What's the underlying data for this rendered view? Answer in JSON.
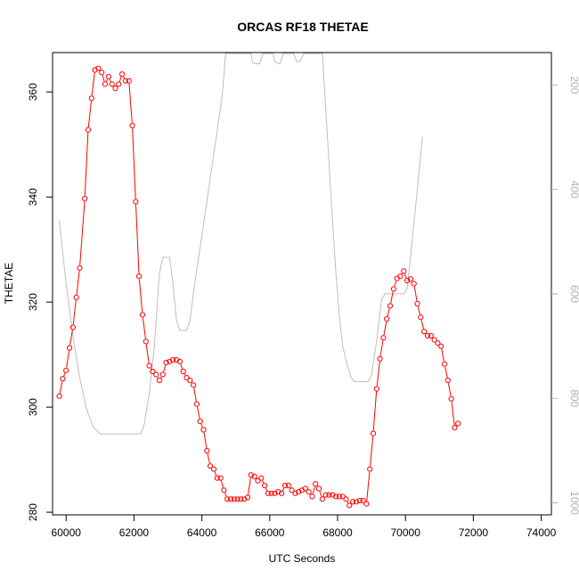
{
  "chart_data": {
    "type": "line",
    "title": "ORCAS RF18 THETAE",
    "xlabel": "UTC Seconds",
    "ylabel": "THETAE",
    "xlim": [
      59600,
      74300
    ],
    "ylim": [
      279.5,
      367.5
    ],
    "x_ticks": [
      60000,
      62000,
      64000,
      66000,
      68000,
      70000,
      72000,
      74000
    ],
    "y_ticks": [
      280,
      300,
      320,
      340,
      360
    ],
    "y2_ticks": [
      200,
      400,
      600,
      800,
      1000
    ],
    "y2lim_reversed": [
      1023,
      138
    ],
    "series": [
      {
        "color": "#ff0000",
        "style": "points-lines",
        "points": [
          [
            59800,
            302.1
          ],
          [
            59900,
            305.4
          ],
          [
            60000,
            307.0
          ],
          [
            60100,
            311.3
          ],
          [
            60200,
            315.2
          ],
          [
            60300,
            320.9
          ],
          [
            60400,
            326.5
          ],
          [
            60550,
            339.7
          ],
          [
            60650,
            352.8
          ],
          [
            60750,
            358.8
          ],
          [
            60850,
            364.2
          ],
          [
            60950,
            364.5
          ],
          [
            61050,
            363.7
          ],
          [
            61150,
            361.5
          ],
          [
            61250,
            362.9
          ],
          [
            61350,
            361.5
          ],
          [
            61450,
            360.7
          ],
          [
            61550,
            361.5
          ],
          [
            61650,
            363.4
          ],
          [
            61750,
            362.1
          ],
          [
            61850,
            362.1
          ],
          [
            61950,
            353.6
          ],
          [
            62050,
            339.1
          ],
          [
            62150,
            324.9
          ],
          [
            62250,
            317.6
          ],
          [
            62350,
            312.5
          ],
          [
            62450,
            307.9
          ],
          [
            62550,
            306.8
          ],
          [
            62650,
            306.2
          ],
          [
            62750,
            305.1
          ],
          [
            62850,
            306.2
          ],
          [
            62950,
            308.5
          ],
          [
            63050,
            308.7
          ],
          [
            63150,
            309.0
          ],
          [
            63250,
            309.0
          ],
          [
            63350,
            308.7
          ],
          [
            63450,
            306.8
          ],
          [
            63550,
            305.6
          ],
          [
            63650,
            305.1
          ],
          [
            63750,
            304.2
          ],
          [
            63850,
            300.6
          ],
          [
            63950,
            297.3
          ],
          [
            64050,
            295.7
          ],
          [
            64150,
            291.7
          ],
          [
            64250,
            288.8
          ],
          [
            64350,
            288.2
          ],
          [
            64450,
            286.5
          ],
          [
            64550,
            286.5
          ],
          [
            64650,
            284.2
          ],
          [
            64750,
            282.5
          ],
          [
            64850,
            282.5
          ],
          [
            64950,
            282.5
          ],
          [
            65050,
            282.5
          ],
          [
            65150,
            282.5
          ],
          [
            65250,
            282.5
          ],
          [
            65350,
            282.8
          ],
          [
            65450,
            287.1
          ],
          [
            65550,
            286.8
          ],
          [
            65650,
            286.0
          ],
          [
            65750,
            286.5
          ],
          [
            65850,
            285.1
          ],
          [
            65950,
            283.6
          ],
          [
            66050,
            283.6
          ],
          [
            66150,
            283.6
          ],
          [
            66250,
            283.9
          ],
          [
            66350,
            283.6
          ],
          [
            66450,
            285.1
          ],
          [
            66550,
            285.1
          ],
          [
            66650,
            284.2
          ],
          [
            66750,
            283.6
          ],
          [
            66850,
            283.9
          ],
          [
            66950,
            284.2
          ],
          [
            67050,
            284.5
          ],
          [
            67150,
            283.9
          ],
          [
            67250,
            283.0
          ],
          [
            67350,
            285.4
          ],
          [
            67450,
            284.5
          ],
          [
            67550,
            282.5
          ],
          [
            67650,
            283.3
          ],
          [
            67750,
            283.3
          ],
          [
            67850,
            283.3
          ],
          [
            67950,
            283.0
          ],
          [
            68050,
            283.0
          ],
          [
            68150,
            283.0
          ],
          [
            68250,
            282.5
          ],
          [
            68350,
            281.3
          ],
          [
            68450,
            282.0
          ],
          [
            68550,
            282.0
          ],
          [
            68650,
            282.2
          ],
          [
            68750,
            282.2
          ],
          [
            68850,
            281.6
          ],
          [
            68950,
            288.2
          ],
          [
            69050,
            295.0
          ],
          [
            69150,
            303.5
          ],
          [
            69250,
            309.2
          ],
          [
            69350,
            313.2
          ],
          [
            69450,
            316.8
          ],
          [
            69550,
            319.3
          ],
          [
            69650,
            322.5
          ],
          [
            69750,
            324.5
          ],
          [
            69850,
            324.9
          ],
          [
            69950,
            325.9
          ],
          [
            70050,
            324.1
          ],
          [
            70150,
            324.4
          ],
          [
            70250,
            323.5
          ],
          [
            70350,
            319.7
          ],
          [
            70450,
            317.1
          ],
          [
            70550,
            314.4
          ],
          [
            70650,
            313.6
          ],
          [
            70750,
            313.6
          ],
          [
            70850,
            312.8
          ],
          [
            70950,
            312.2
          ],
          [
            71050,
            311.6
          ],
          [
            71150,
            308.2
          ],
          [
            71250,
            305.1
          ],
          [
            71350,
            301.6
          ],
          [
            71450,
            296.1
          ],
          [
            71550,
            296.9
          ]
        ]
      },
      {
        "color": "#bebebe",
        "style": "line",
        "axis": "right",
        "points": [
          [
            59800,
            460
          ],
          [
            60000,
            580
          ],
          [
            60200,
            680
          ],
          [
            60400,
            760
          ],
          [
            60600,
            820
          ],
          [
            60800,
            855
          ],
          [
            61000,
            868
          ],
          [
            61200,
            868
          ],
          [
            61400,
            868
          ],
          [
            61600,
            868
          ],
          [
            61800,
            868
          ],
          [
            62000,
            868
          ],
          [
            62200,
            868
          ],
          [
            62300,
            850
          ],
          [
            62450,
            790
          ],
          [
            62600,
            700
          ],
          [
            62750,
            560
          ],
          [
            62850,
            530
          ],
          [
            63050,
            530
          ],
          [
            63150,
            580
          ],
          [
            63250,
            650
          ],
          [
            63350,
            670
          ],
          [
            63550,
            670
          ],
          [
            63650,
            650
          ],
          [
            63800,
            575
          ],
          [
            64000,
            490
          ],
          [
            64200,
            400
          ],
          [
            64400,
            310
          ],
          [
            64600,
            220
          ],
          [
            64700,
            138
          ],
          [
            65450,
            138
          ],
          [
            65500,
            158
          ],
          [
            65700,
            160
          ],
          [
            65800,
            138
          ],
          [
            66100,
            138
          ],
          [
            66150,
            155
          ],
          [
            66300,
            160
          ],
          [
            66400,
            138
          ],
          [
            66700,
            138
          ],
          [
            66800,
            155
          ],
          [
            66900,
            155
          ],
          [
            67000,
            138
          ],
          [
            67550,
            138
          ],
          [
            67700,
            300
          ],
          [
            67850,
            460
          ],
          [
            67950,
            560
          ],
          [
            68050,
            640
          ],
          [
            68150,
            700
          ],
          [
            68300,
            740
          ],
          [
            68400,
            760
          ],
          [
            68500,
            768
          ],
          [
            68900,
            768
          ],
          [
            69000,
            755
          ],
          [
            69150,
            690
          ],
          [
            69300,
            610
          ],
          [
            69400,
            600
          ],
          [
            69950,
            600
          ],
          [
            70050,
            590
          ],
          [
            70150,
            530
          ],
          [
            70350,
            400
          ],
          [
            70500,
            300
          ]
        ]
      }
    ]
  }
}
